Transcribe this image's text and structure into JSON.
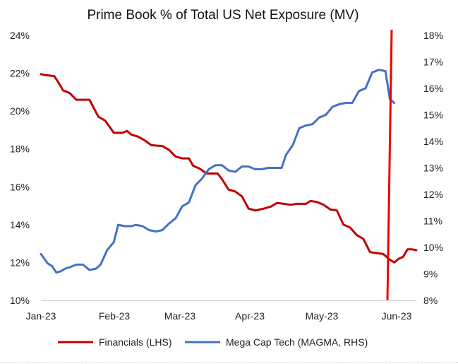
{
  "chart_data": {
    "type": "line",
    "title": "Prime Book % of Total US Net Exposure (MV)",
    "x_ticks": [
      "Jan-23",
      "Feb-23",
      "Mar-23",
      "Apr-23",
      "May-23",
      "Jun-23"
    ],
    "x_range": [
      "Jan-23",
      "Jun-23 (mid)"
    ],
    "left_axis": {
      "ticks": [
        "10%",
        "12%",
        "14%",
        "16%",
        "18%",
        "20%",
        "22%",
        "24%"
      ],
      "range": [
        10,
        24
      ],
      "unit": "%"
    },
    "right_axis": {
      "ticks": [
        "8%",
        "9%",
        "10%",
        "11%",
        "12%",
        "13%",
        "14%",
        "15%",
        "16%",
        "17%",
        "18%"
      ],
      "range": [
        8,
        18
      ],
      "unit": "%"
    },
    "grid": false,
    "legend_placement": "bottom",
    "series": [
      {
        "name": "Financials (LHS)",
        "axis": "left",
        "color": "#c00000",
        "x": [
          0,
          0.25,
          0.5,
          0.75,
          1,
          1.25,
          1.5,
          1.75,
          2,
          2.25,
          2.5,
          2.75,
          3,
          3.25,
          3.5,
          3.75,
          4,
          4.25,
          4.5,
          4.75,
          5,
          5.25,
          5.5,
          5.75,
          6,
          6.25,
          6.5,
          6.75,
          7,
          7.25,
          7.5,
          7.75,
          8,
          8.25,
          8.5,
          8.75,
          9,
          9.25,
          9.5,
          9.75,
          10,
          10.25,
          10.5,
          10.75,
          11,
          11.25,
          11.5,
          11.75,
          12,
          12.25,
          12.5,
          12.75,
          13,
          13.25,
          13.5,
          13.75,
          14,
          14.25,
          14.5,
          14.75,
          15,
          15.25,
          15.5,
          15.75,
          16,
          16.25,
          16.5,
          16.75,
          17,
          17.25,
          17.5,
          17.75,
          18,
          18.25,
          18.5,
          18.75,
          19,
          19.25,
          19.5,
          19.75,
          20,
          20.25,
          20.5,
          20.75,
          21,
          21.25,
          21.5,
          21.75,
          22,
          22.25,
          22.5,
          22.75,
          23,
          23.25,
          23.5,
          23.75,
          24,
          24.25,
          24.5,
          24.75,
          25,
          25.25,
          25.5,
          25.75,
          26,
          26.25,
          26.5,
          26.75,
          27,
          27.25,
          27.5,
          27.75,
          28,
          28.25,
          28.5,
          28.75,
          29,
          29.25,
          29.5,
          29.75,
          30,
          30.25,
          30.5,
          30.75,
          31,
          31.25,
          31.5,
          31.75,
          32,
          32.25,
          32.5,
          32.75,
          33,
          33.25,
          33.5,
          33.75,
          34,
          34.25,
          34.5,
          34.75,
          35,
          35.25,
          35.5,
          35.75,
          36,
          36.25,
          36.5,
          36.75,
          37,
          37.25,
          37.5,
          37.75,
          38,
          38.25,
          38.5,
          38.75,
          39,
          39.25,
          39.5,
          39.75,
          40,
          40.25,
          40.5,
          40.75,
          41,
          41.25,
          41.5,
          41.75,
          42,
          42.25,
          42.5,
          42.75,
          43,
          43.25,
          43.5,
          43.75,
          44,
          44.25,
          44.5,
          44.75,
          45,
          45.25,
          45.5,
          45.75,
          46,
          46.25,
          46.5,
          46.75,
          47,
          47.25,
          47.5,
          47.75,
          48,
          48.25,
          48.5,
          48.75,
          49,
          49.25,
          49.5,
          49.75,
          50,
          50.25,
          50.5,
          50.75,
          51,
          51.25,
          51.5,
          51.75,
          52,
          52.25,
          52.5,
          52.75,
          53,
          53.25,
          53.5,
          53.75,
          54,
          54.25,
          54.5,
          54.75,
          55,
          55.25,
          55.5,
          55.75,
          56,
          56.25,
          56.5,
          56.75,
          57,
          57.25,
          57.5,
          57.75,
          58,
          58.25,
          58.5,
          58.75,
          59,
          59.25,
          59.5,
          59.75,
          60,
          60.25,
          60.5,
          60.75,
          61,
          61.25,
          61.5,
          61.75,
          62,
          62.25,
          62.5,
          62.75,
          63,
          63.25,
          63.5,
          63.75,
          64,
          64.25,
          64.5,
          64.75,
          65,
          65.25,
          65.5,
          65.75,
          66,
          66.25,
          66.5,
          66.75,
          67,
          67.25,
          67.5,
          67.75,
          68,
          68.25,
          68.5,
          68.75,
          69,
          69.25,
          69.5,
          69.75,
          70,
          70.25,
          70.5,
          70.75,
          71,
          71.25,
          71.5,
          71.75,
          72,
          72.25,
          72.5,
          72.75,
          73,
          73.25,
          73.5,
          73.75,
          74,
          74.25,
          74.5,
          74.75,
          75,
          75.25,
          75.5,
          75.75,
          76,
          76.25,
          76.5,
          76.75,
          77,
          77.25,
          77.5,
          77.75,
          78,
          78.25,
          78.5,
          78.75,
          79,
          79.25,
          79.5,
          79.75,
          80,
          80.25,
          80.5,
          80.75,
          81,
          81.25,
          81.5,
          81.75,
          82,
          82.25,
          82.5,
          82.75,
          83,
          83.25,
          83.5,
          83.75,
          84,
          84.25,
          84.5,
          84.75,
          85,
          85.25,
          85.5,
          85.75,
          86,
          86.25,
          86.5,
          86.75,
          87,
          87.25,
          87.5,
          87.75,
          88,
          88.25,
          88.5,
          88.75,
          89,
          89.25,
          89.5,
          89.75,
          90,
          90.25,
          90.5,
          90.75,
          91,
          91.25,
          91.5,
          91.75,
          92,
          92.25,
          92.5,
          92.75,
          93,
          93.25,
          93.5,
          93.75,
          94,
          94.25,
          94.5,
          94.75,
          95,
          95.25,
          95.5,
          95.75,
          96,
          96.25,
          96.5,
          96.75,
          97,
          97.25,
          97.5,
          97.75,
          98,
          98.25,
          98.5,
          98.75,
          99,
          99.25,
          99.5,
          99.75,
          100,
          100.25,
          100.5,
          100.75,
          101,
          101.25,
          101.5,
          101.75,
          102,
          102.25,
          102.5,
          102.75,
          103,
          103.25,
          103.5,
          103.75,
          104,
          104.25,
          104.5,
          104.75,
          105,
          105.25,
          105.5,
          105.75,
          106,
          106.25,
          106.5,
          106.75,
          107,
          107.25,
          107.5,
          107.75,
          108,
          108.25,
          108.5,
          108.75,
          109,
          109.25,
          109.5,
          109.75,
          110,
          110.25,
          110.5,
          110.75,
          111,
          111.25,
          111.5,
          111.75,
          112,
          112.25,
          112.5,
          112.75,
          113,
          113.25,
          113.5,
          113.75,
          114,
          114.25,
          114.5,
          114.75,
          115,
          115.25,
          115.5,
          115.75,
          116,
          116.25,
          116.5,
          116.75,
          117,
          117.25,
          117.5,
          117.75,
          118,
          118.25,
          118.5,
          118.75,
          119,
          119.25,
          119.5,
          119.75,
          120,
          120.25,
          120.5,
          120.75,
          121,
          121.25,
          121.5,
          121.75,
          122,
          122.25,
          122.5,
          122.75,
          123,
          123.25,
          123.5,
          123.75,
          124,
          124.25,
          124.5,
          124.75,
          125,
          125.25,
          125.5,
          125.75,
          126,
          126.25,
          126.5,
          126.75,
          127,
          127.25,
          127.5,
          127.75,
          128,
          128.25,
          128.5,
          128.75,
          129,
          129.25,
          129.5,
          129.75,
          130,
          130.25,
          130.5,
          130.75,
          131,
          131.25,
          131.5,
          131.75,
          132,
          132.25,
          132.5,
          132.75,
          133,
          133.25,
          133.5,
          133.75,
          134,
          134.25,
          134.5,
          134.75,
          135,
          135.25,
          135.5,
          135.75,
          136,
          136.25,
          136.5,
          136.75,
          137,
          137.25,
          137.5,
          137.75,
          138,
          138.25,
          138.5,
          138.75,
          139,
          139.25,
          139.5,
          139.75,
          140,
          140.25,
          140.5,
          140.75,
          141,
          141.25,
          141.5,
          141.75,
          142,
          142.25,
          142.5,
          142.75,
          143,
          143.25,
          143.5,
          143.75,
          144,
          144.25,
          144.5,
          144.75,
          145,
          145.25,
          145.5,
          145.75,
          146,
          146.25,
          146.5,
          146.75,
          147,
          147.25,
          147.5,
          147.75,
          148,
          148.25,
          148.5,
          148.75,
          149,
          149.25,
          149.5,
          149.75,
          150,
          150.25,
          150.5,
          150.75,
          151,
          151.25,
          151.5,
          151.75,
          152,
          152.25,
          152.5,
          152.75,
          153,
          153.25,
          153.5,
          153.75,
          154,
          154.25,
          154.5,
          154.75,
          155,
          155.25,
          155.5,
          155.75,
          156,
          156.25,
          156.5,
          156.75,
          157,
          157.25,
          157.5,
          157.75,
          158,
          158.25,
          158.5,
          158.75,
          159,
          159.25,
          159.5,
          159.75,
          160,
          160.25,
          160.5,
          160.75,
          161,
          161.25,
          161.5,
          161.75,
          162,
          162.25,
          162.5,
          162.75,
          163,
          163.25,
          163.5,
          163.75,
          164,
          164.25,
          164.5,
          164.75,
          165,
          165.25,
          165.5,
          165.75,
          166,
          166.25,
          166.5
        ],
        "values": null,
        "points": [
          [
            0,
            21.95
          ],
          [
            2,
            21.9
          ],
          [
            6,
            21.85
          ],
          [
            8,
            21.5
          ],
          [
            10,
            21.1
          ],
          [
            13,
            20.95
          ],
          [
            16,
            20.6
          ],
          [
            22,
            20.6
          ],
          [
            26,
            19.7
          ],
          [
            29,
            19.5
          ],
          [
            33,
            18.85
          ],
          [
            37,
            18.85
          ],
          [
            39,
            18.95
          ],
          [
            41,
            18.75
          ],
          [
            44,
            18.65
          ],
          [
            47,
            18.45
          ],
          [
            50,
            18.2
          ],
          [
            55,
            18.15
          ],
          [
            58,
            17.95
          ],
          [
            61,
            17.6
          ],
          [
            64,
            17.5
          ],
          [
            67,
            17.5
          ],
          [
            69,
            17.1
          ],
          [
            72,
            16.95
          ],
          [
            75,
            16.7
          ],
          [
            80,
            16.7
          ],
          [
            82,
            16.4
          ],
          [
            85,
            15.85
          ],
          [
            88,
            15.75
          ],
          [
            91,
            15.5
          ],
          [
            94,
            14.85
          ],
          [
            97,
            14.75
          ],
          [
            101,
            14.85
          ],
          [
            104,
            14.95
          ],
          [
            107,
            15.15
          ],
          [
            110,
            15.1
          ],
          [
            113,
            15.05
          ],
          [
            116,
            15.1
          ],
          [
            120,
            15.1
          ],
          [
            122,
            15.25
          ],
          [
            125,
            15.2
          ],
          [
            128,
            15.05
          ],
          [
            131,
            14.8
          ],
          [
            134,
            14.75
          ],
          [
            137,
            14.0
          ],
          [
            140,
            13.85
          ],
          [
            143,
            13.45
          ],
          [
            146,
            13.25
          ],
          [
            149,
            12.55
          ],
          [
            152,
            12.5
          ],
          [
            155,
            12.45
          ],
          [
            158,
            12.15
          ],
          [
            160,
            12.0
          ],
          [
            162,
            12.2
          ],
          [
            164,
            12.3
          ],
          [
            166,
            12.7
          ],
          [
            168,
            12.7
          ],
          [
            170,
            12.65
          ]
        ]
      },
      {
        "name": "Mega Cap Tech (MAGMA, RHS)",
        "axis": "right",
        "color": "#4472c4",
        "points": [
          [
            0,
            9.75
          ],
          [
            3,
            9.4
          ],
          [
            5,
            9.3
          ],
          [
            7,
            9.05
          ],
          [
            9,
            9.1
          ],
          [
            11,
            9.2
          ],
          [
            13,
            9.25
          ],
          [
            16,
            9.35
          ],
          [
            19,
            9.35
          ],
          [
            22,
            9.15
          ],
          [
            25,
            9.2
          ],
          [
            27,
            9.35
          ],
          [
            30,
            9.9
          ],
          [
            33,
            10.2
          ],
          [
            35,
            10.85
          ],
          [
            38,
            10.8
          ],
          [
            41,
            10.8
          ],
          [
            43,
            10.85
          ],
          [
            46,
            10.8
          ],
          [
            49,
            10.65
          ],
          [
            52,
            10.6
          ],
          [
            55,
            10.65
          ],
          [
            58,
            10.9
          ],
          [
            61,
            11.1
          ],
          [
            64,
            11.55
          ],
          [
            67,
            11.7
          ],
          [
            70,
            12.35
          ],
          [
            73,
            12.6
          ],
          [
            76,
            12.95
          ],
          [
            79,
            13.1
          ],
          [
            82,
            13.1
          ],
          [
            85,
            12.9
          ],
          [
            88,
            12.85
          ],
          [
            91,
            13.05
          ],
          [
            94,
            13.05
          ],
          [
            97,
            12.95
          ],
          [
            100,
            12.95
          ],
          [
            103,
            13.0
          ],
          [
            106,
            13.0
          ],
          [
            109,
            13.0
          ],
          [
            111,
            13.5
          ],
          [
            114,
            13.85
          ],
          [
            117,
            14.5
          ],
          [
            120,
            14.6
          ],
          [
            123,
            14.65
          ],
          [
            126,
            14.9
          ],
          [
            129,
            15.0
          ],
          [
            132,
            15.3
          ],
          [
            135,
            15.4
          ],
          [
            138,
            15.45
          ],
          [
            141,
            15.45
          ],
          [
            144,
            15.9
          ],
          [
            147,
            16.0
          ],
          [
            150,
            16.6
          ],
          [
            153,
            16.7
          ],
          [
            156,
            16.65
          ],
          [
            158,
            15.6
          ],
          [
            160,
            15.45
          ]
        ],
        "note": ""
      }
    ]
  },
  "legend": {
    "items": [
      {
        "label": "Financials (LHS)",
        "color": "#c00000"
      },
      {
        "label": "Mega Cap Tech (MAGMA, RHS)",
        "color": "#4472c4"
      }
    ]
  },
  "overlay": {
    "color": "#ee0000"
  }
}
